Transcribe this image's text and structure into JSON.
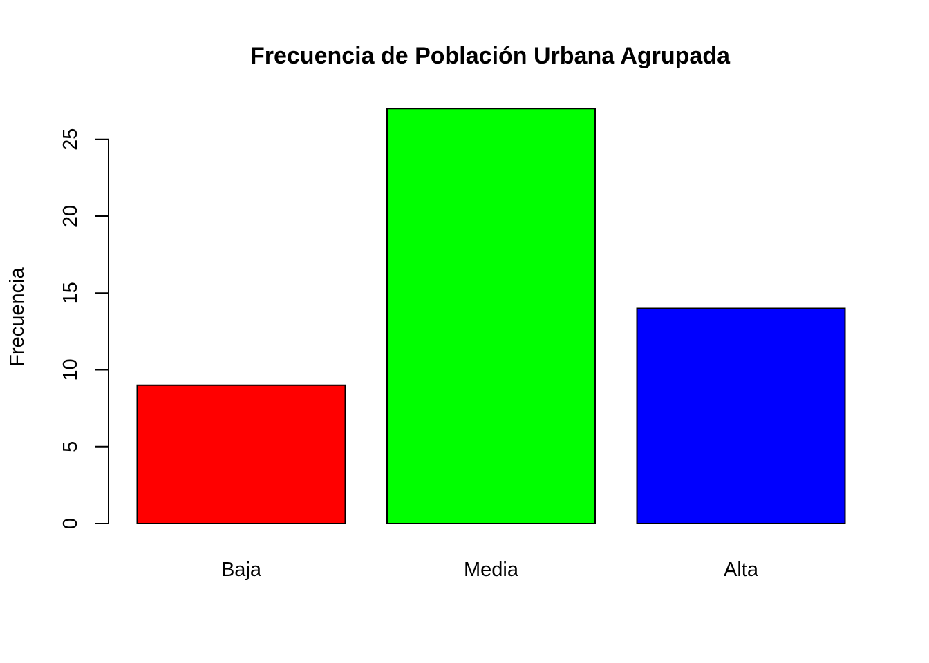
{
  "chart_data": {
    "type": "bar",
    "title": "Frecuencia de Población Urbana Agrupada",
    "xlabel": "",
    "ylabel": "Frecuencia",
    "categories": [
      "Baja",
      "Media",
      "Alta"
    ],
    "values": [
      9,
      27,
      14
    ],
    "colors": [
      "#FF0000",
      "#00FF00",
      "#0000FF"
    ],
    "yticks": [
      0,
      5,
      10,
      15,
      20,
      25
    ],
    "ylim": [
      0,
      27
    ],
    "grid": false,
    "legend": "none"
  }
}
